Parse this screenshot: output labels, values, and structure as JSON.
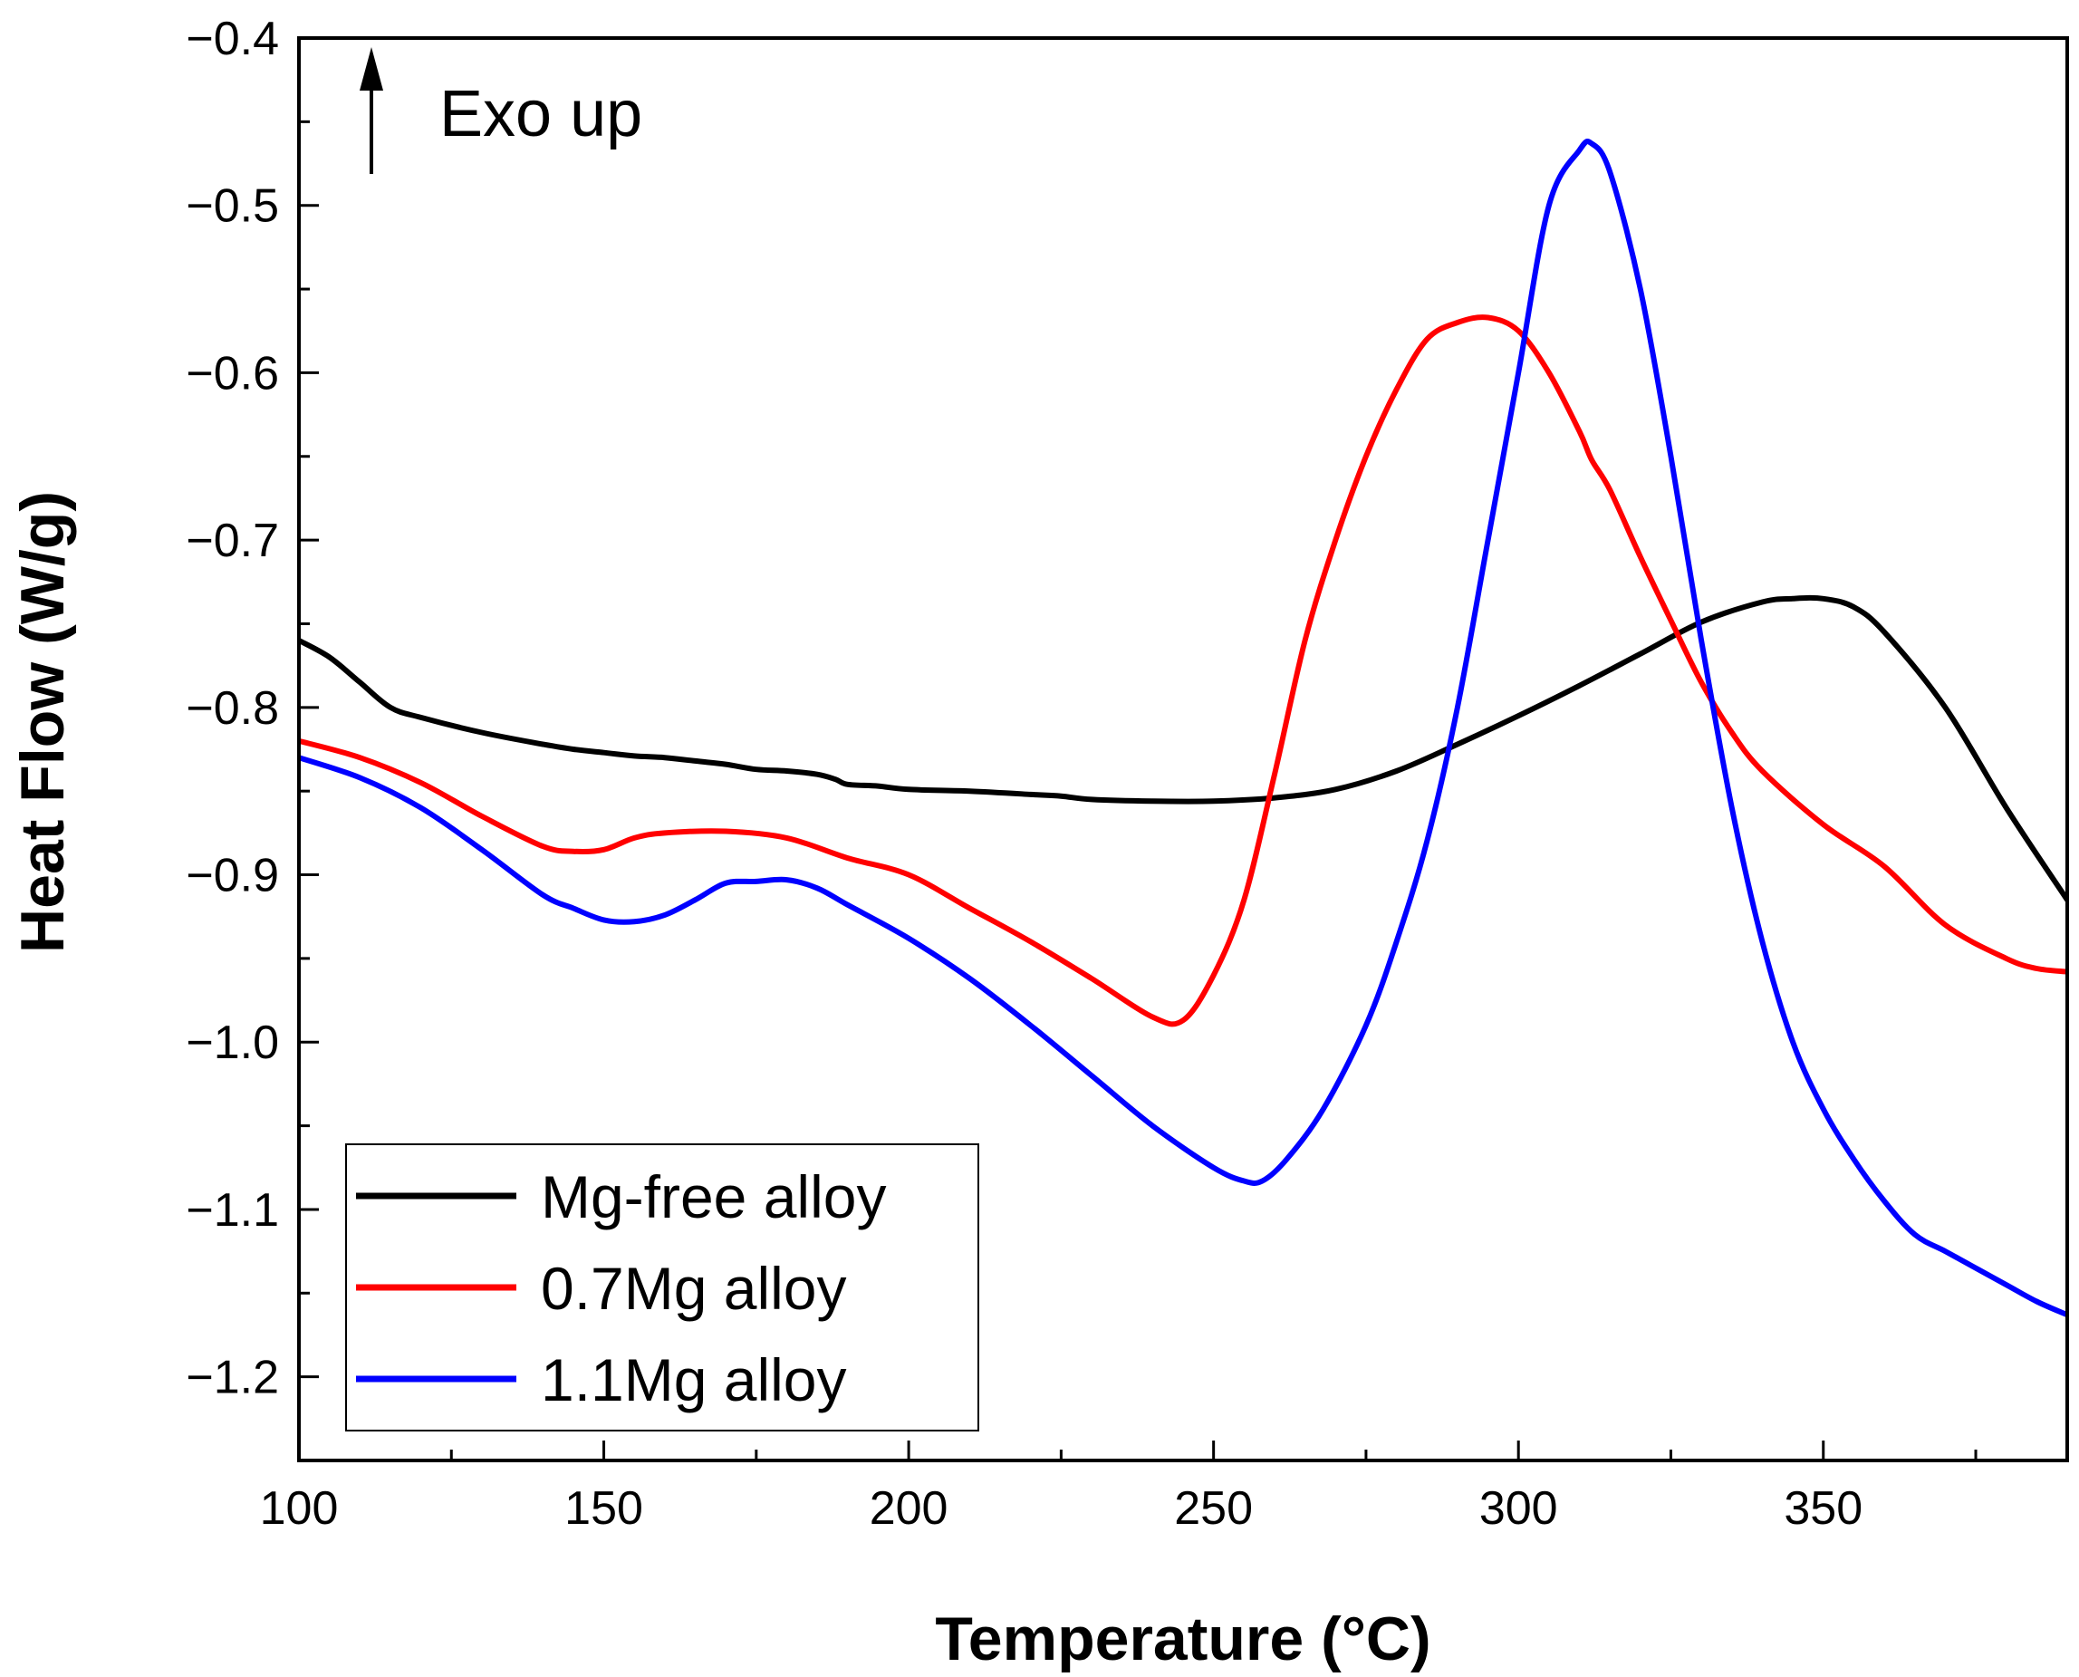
{
  "chart_data": {
    "type": "line",
    "title": "",
    "xlabel": "Temperature (°C)",
    "ylabel": "Heat Flow (W/g)",
    "xlim": [
      100,
      390
    ],
    "ylim": [
      -1.25,
      -0.4
    ],
    "xticks": [
      100,
      150,
      200,
      250,
      300,
      350
    ],
    "yticks": [
      -0.4,
      -0.5,
      -0.6,
      -0.7,
      -0.8,
      -0.9,
      -1.0,
      -1.1,
      -1.2
    ],
    "xtick_labels": [
      "100",
      "150",
      "200",
      "250",
      "300",
      "350"
    ],
    "ytick_labels": [
      "−0.4",
      "−0.5",
      "−0.6",
      "−0.7",
      "−0.8",
      "−0.9",
      "−1.0",
      "−1.1",
      "−1.2"
    ],
    "annotation": "Exo up",
    "grid": false,
    "legend_position": "bottom-left",
    "series": [
      {
        "name": "Mg-free alloy",
        "color": "#000000",
        "x": [
          100,
          105,
          110,
          115,
          120,
          130,
          140,
          145,
          150,
          155,
          160,
          165,
          170,
          175,
          180,
          185,
          188,
          190,
          195,
          200,
          210,
          220,
          225,
          230,
          240,
          250,
          260,
          270,
          280,
          290,
          300,
          310,
          320,
          330,
          340,
          345,
          350,
          355,
          360,
          370,
          380,
          390
        ],
        "y": [
          -0.76,
          -0.77,
          -0.785,
          -0.8,
          -0.806,
          -0.815,
          -0.822,
          -0.825,
          -0.827,
          -0.829,
          -0.83,
          -0.832,
          -0.834,
          -0.837,
          -0.838,
          -0.84,
          -0.843,
          -0.846,
          -0.847,
          -0.849,
          -0.85,
          -0.852,
          -0.853,
          -0.855,
          -0.856,
          -0.856,
          -0.854,
          -0.849,
          -0.838,
          -0.822,
          -0.805,
          -0.787,
          -0.768,
          -0.749,
          -0.737,
          -0.735,
          -0.735,
          -0.74,
          -0.755,
          -0.8,
          -0.86,
          -0.915
        ]
      },
      {
        "name": "0.7Mg alloy",
        "color": "#ff0000",
        "x": [
          100,
          110,
          120,
          130,
          140,
          145,
          150,
          155,
          160,
          170,
          180,
          190,
          200,
          210,
          220,
          230,
          240,
          245,
          250,
          255,
          260,
          265,
          270,
          275,
          280,
          285,
          290,
          295,
          300,
          305,
          310,
          312,
          315,
          320,
          325,
          330,
          335,
          340,
          350,
          360,
          370,
          380,
          385,
          390
        ],
        "y": [
          -0.82,
          -0.83,
          -0.845,
          -0.865,
          -0.883,
          -0.886,
          -0.885,
          -0.878,
          -0.875,
          -0.874,
          -0.878,
          -0.89,
          -0.9,
          -0.92,
          -0.94,
          -0.962,
          -0.985,
          -0.987,
          -0.96,
          -0.915,
          -0.84,
          -0.76,
          -0.7,
          -0.65,
          -0.61,
          -0.58,
          -0.57,
          -0.567,
          -0.575,
          -0.6,
          -0.635,
          -0.652,
          -0.67,
          -0.71,
          -0.748,
          -0.785,
          -0.815,
          -0.838,
          -0.87,
          -0.895,
          -0.93,
          -0.95,
          -0.956,
          -0.958
        ]
      },
      {
        "name": "1.1Mg alloy",
        "color": "#0000ff",
        "x": [
          100,
          110,
          120,
          130,
          140,
          145,
          150,
          155,
          160,
          165,
          170,
          175,
          180,
          185,
          190,
          200,
          210,
          220,
          230,
          240,
          250,
          255,
          258,
          262,
          268,
          275,
          280,
          285,
          290,
          295,
          300,
          305,
          310,
          312,
          315,
          320,
          325,
          330,
          335,
          340,
          345,
          350,
          355,
          360,
          365,
          370,
          375,
          380,
          385,
          390
        ],
        "y": [
          -0.83,
          -0.842,
          -0.86,
          -0.885,
          -0.912,
          -0.92,
          -0.927,
          -0.928,
          -0.924,
          -0.915,
          -0.905,
          -0.904,
          -0.903,
          -0.908,
          -0.918,
          -0.938,
          -0.962,
          -0.99,
          -1.02,
          -1.05,
          -1.075,
          -1.083,
          -1.083,
          -1.07,
          -1.04,
          -0.99,
          -0.94,
          -0.88,
          -0.8,
          -0.7,
          -0.6,
          -0.5,
          -0.467,
          -0.463,
          -0.48,
          -0.55,
          -0.65,
          -0.76,
          -0.86,
          -0.94,
          -1.0,
          -1.04,
          -1.07,
          -1.095,
          -1.115,
          -1.125,
          -1.135,
          -1.145,
          -1.155,
          -1.163
        ]
      }
    ]
  }
}
